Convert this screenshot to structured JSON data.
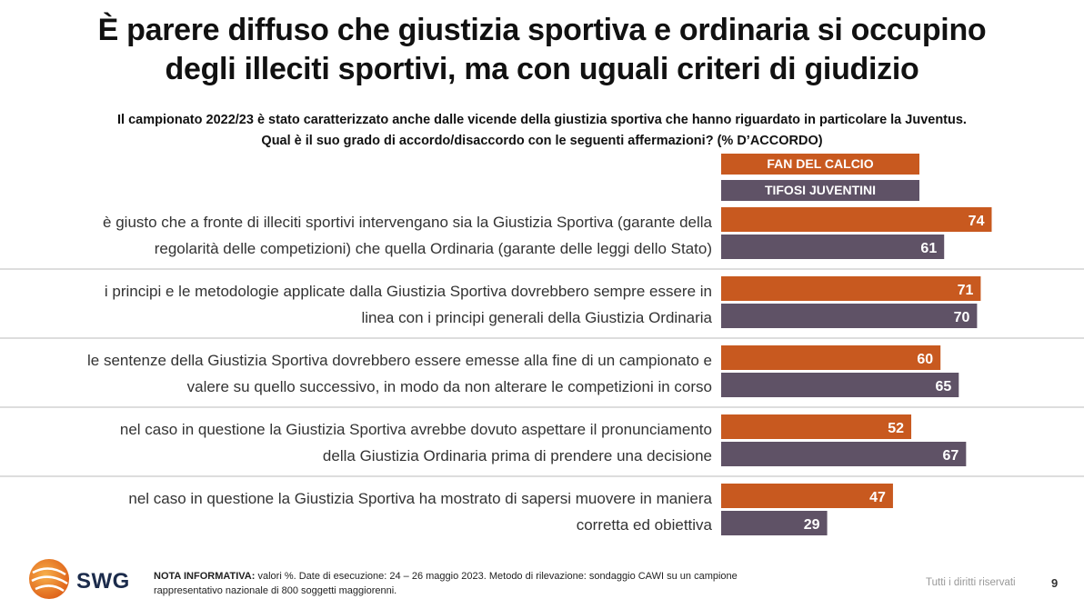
{
  "title": {
    "line1": "È parere diffuso che giustizia sportiva e ordinaria si occupino",
    "line2": "degli illeciti sportivi, ma con uguali criteri di giudizio"
  },
  "question": {
    "line1": "Il campionato 2022/23 è stato caratterizzato anche dalle vicende della giustizia sportiva che hanno riguardato in particolare la Juventus.",
    "line2": "Qual è il suo grado di accordo/disaccordo con le seguenti affermazioni? (% D’ACCORDO)"
  },
  "colors": {
    "fan": "#c8591f",
    "juve": "#5f5266",
    "separator": "#bbbbbb"
  },
  "chart_data": {
    "type": "bar",
    "orientation": "horizontal",
    "categories": [
      [
        "è giusto che a fronte di illeciti sportivi intervengano sia la Giustizia Sportiva (garante della",
        "regolarità delle competizioni) che quella Ordinaria (garante delle leggi dello Stato)"
      ],
      [
        "i principi e le metodologie applicate dalla Giustizia Sportiva dovrebbero sempre essere in",
        "linea con i principi generali della Giustizia Ordinaria"
      ],
      [
        "le sentenze della Giustizia Sportiva dovrebbero essere emesse alla fine di un campionato e",
        "valere su quello successivo, in modo da non alterare le competizioni in corso"
      ],
      [
        "nel caso in questione la Giustizia Sportiva avrebbe dovuto aspettare il pronunciamento",
        "della Giustizia Ordinaria prima di prendere una decisione"
      ],
      [
        "nel caso in questione la Giustizia Sportiva ha mostrato di sapersi muovere in maniera",
        "corretta ed obiettiva"
      ]
    ],
    "series": [
      {
        "name": "FAN DEL CALCIO",
        "values": [
          74,
          71,
          60,
          52,
          47
        ]
      },
      {
        "name": "TIFOSI JUVENTINI",
        "values": [
          61,
          70,
          65,
          67,
          29
        ]
      }
    ],
    "xlim": [
      0,
      100
    ],
    "legend": "top"
  },
  "footer": {
    "note_label": "NOTA INFORMATIVA:",
    "note_text1": " valori %. Date di esecuzione: 24 – 26 maggio 2023. Metodo di rilevazione: sondaggio CAWI su un campione",
    "note_text2": "rappresentativo nazionale di 800 soggetti maggiorenni.",
    "rights": "Tutti i diritti riservati",
    "page": "9",
    "logo": "SWG"
  }
}
